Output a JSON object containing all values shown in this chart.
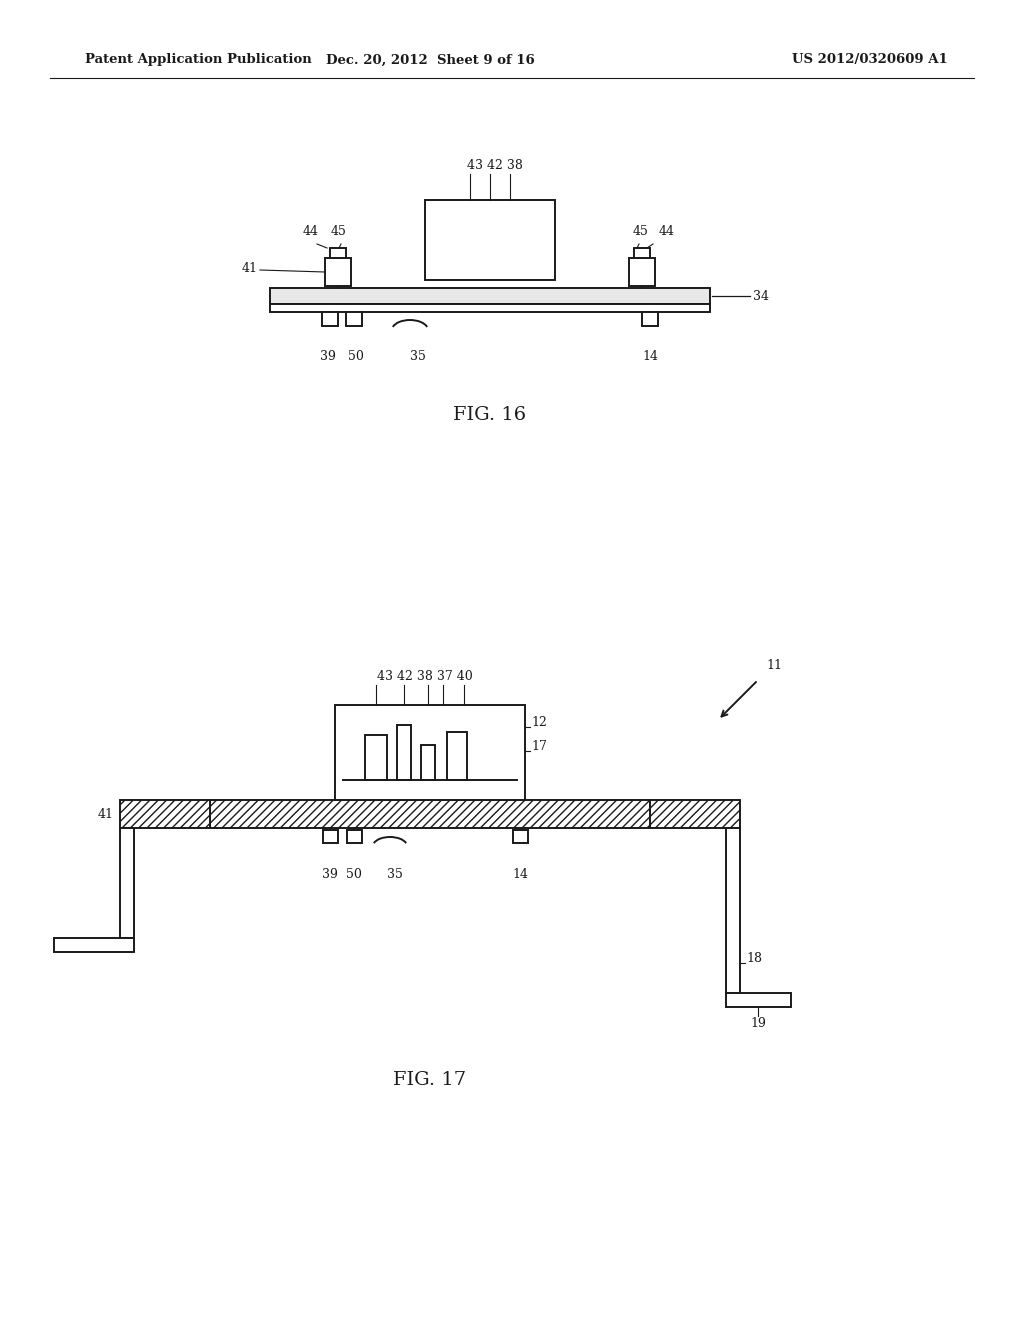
{
  "bg_color": "#ffffff",
  "line_color": "#1a1a1a",
  "header_left": "Patent Application Publication",
  "header_mid": "Dec. 20, 2012  Sheet 9 of 16",
  "header_right": "US 2012/0320609 A1",
  "fig16_label": "FIG. 16",
  "fig17_label": "FIG. 17"
}
